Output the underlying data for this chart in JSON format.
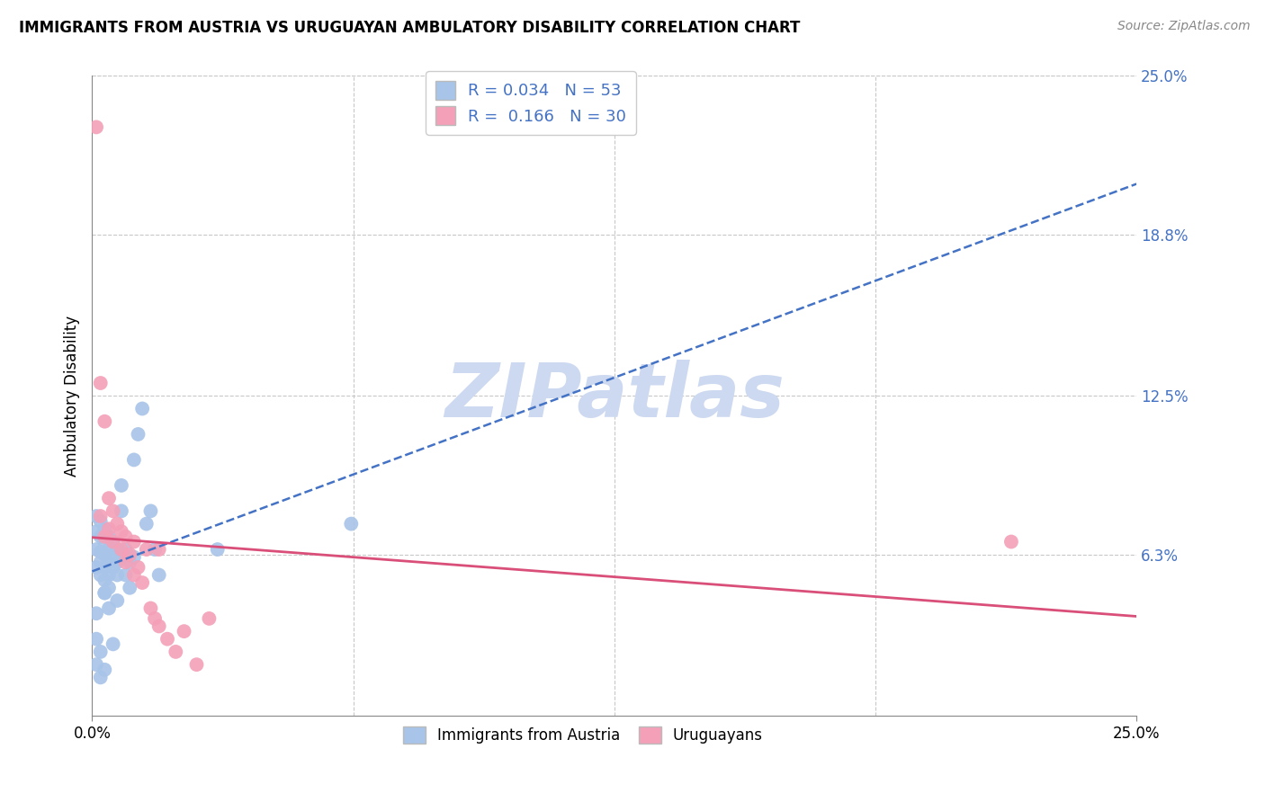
{
  "title": "IMMIGRANTS FROM AUSTRIA VS URUGUAYAN AMBULATORY DISABILITY CORRELATION CHART",
  "source": "Source: ZipAtlas.com",
  "ylabel": "Ambulatory Disability",
  "xlim": [
    0.0,
    0.25
  ],
  "ylim": [
    0.0,
    0.25
  ],
  "ytick_labels": [
    "6.3%",
    "12.5%",
    "18.8%",
    "25.0%"
  ],
  "ytick_values": [
    0.063,
    0.125,
    0.188,
    0.25
  ],
  "xtick_labels": [
    "0.0%",
    "25.0%"
  ],
  "austria_R": "0.034",
  "austria_N": "53",
  "uruguay_R": "0.166",
  "uruguay_N": "30",
  "bottom_legend1": "Immigrants from Austria",
  "bottom_legend2": "Uruguayans",
  "austria_color": "#a8c4e8",
  "uruguay_color": "#f4a0b8",
  "austria_line_color": "#4472c4",
  "uruguay_line_color": "#d94f7a",
  "austria_x": [
    0.001,
    0.001,
    0.001,
    0.001,
    0.002,
    0.002,
    0.002,
    0.002,
    0.002,
    0.003,
    0.003,
    0.003,
    0.003,
    0.003,
    0.003,
    0.004,
    0.004,
    0.004,
    0.004,
    0.004,
    0.005,
    0.005,
    0.005,
    0.006,
    0.006,
    0.006,
    0.007,
    0.007,
    0.007,
    0.008,
    0.008,
    0.009,
    0.009,
    0.01,
    0.01,
    0.011,
    0.012,
    0.013,
    0.014,
    0.015,
    0.016,
    0.001,
    0.001,
    0.002,
    0.003,
    0.004,
    0.005,
    0.006,
    0.03,
    0.062,
    0.001,
    0.002,
    0.003
  ],
  "austria_y": [
    0.078,
    0.072,
    0.065,
    0.058,
    0.076,
    0.07,
    0.064,
    0.06,
    0.055,
    0.073,
    0.068,
    0.063,
    0.058,
    0.053,
    0.048,
    0.07,
    0.065,
    0.06,
    0.055,
    0.05,
    0.068,
    0.063,
    0.058,
    0.065,
    0.06,
    0.055,
    0.09,
    0.08,
    0.062,
    0.065,
    0.055,
    0.06,
    0.05,
    0.1,
    0.062,
    0.11,
    0.12,
    0.075,
    0.08,
    0.065,
    0.055,
    0.04,
    0.03,
    0.025,
    0.048,
    0.042,
    0.028,
    0.045,
    0.065,
    0.075,
    0.02,
    0.015,
    0.018
  ],
  "uruguay_x": [
    0.001,
    0.002,
    0.002,
    0.003,
    0.003,
    0.004,
    0.004,
    0.005,
    0.005,
    0.006,
    0.007,
    0.007,
    0.008,
    0.008,
    0.009,
    0.01,
    0.01,
    0.011,
    0.012,
    0.013,
    0.014,
    0.015,
    0.016,
    0.016,
    0.018,
    0.02,
    0.022,
    0.025,
    0.028,
    0.22
  ],
  "uruguay_y": [
    0.23,
    0.13,
    0.078,
    0.115,
    0.07,
    0.085,
    0.073,
    0.08,
    0.068,
    0.075,
    0.072,
    0.065,
    0.07,
    0.06,
    0.063,
    0.068,
    0.055,
    0.058,
    0.052,
    0.065,
    0.042,
    0.038,
    0.035,
    0.065,
    0.03,
    0.025,
    0.033,
    0.02,
    0.038,
    0.068
  ],
  "background_color": "#ffffff",
  "grid_color": "#c8c8c8",
  "watermark_text": "ZIPatlas",
  "watermark_color": "#cdd9f0"
}
